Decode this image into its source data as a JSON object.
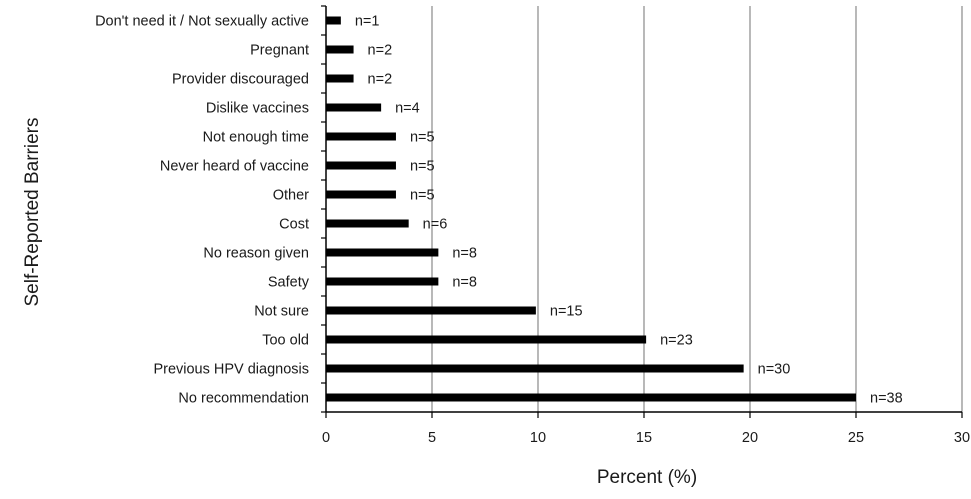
{
  "chart_data": {
    "type": "bar",
    "orientation": "horizontal",
    "xlabel": "Percent (%)",
    "ylabel": "Self-Reported Barriers",
    "xlim": [
      0,
      30
    ],
    "xticks": [
      0,
      5,
      10,
      15,
      20,
      25,
      30
    ],
    "grid": "vertical",
    "bar_color": "#000000",
    "categories": [
      "Don't need it / Not sexually active",
      "Pregnant",
      "Provider discouraged",
      "Dislike vaccines",
      "Not enough time",
      "Never heard of vaccine",
      "Other",
      "Cost",
      "No reason given",
      "Safety",
      "Not sure",
      "Too old",
      "Previous HPV diagnosis",
      "No recommendation"
    ],
    "values": [
      0.7,
      1.3,
      1.3,
      2.6,
      3.3,
      3.3,
      3.3,
      3.9,
      5.3,
      5.3,
      9.9,
      15.1,
      19.7,
      25.0
    ],
    "counts": [
      "n=1",
      "n=2",
      "n=2",
      "n=4",
      "n=5",
      "n=5",
      "n=5",
      "n=6",
      "n=8",
      "n=8",
      "n=15",
      "n=23",
      "n=30",
      "n=38"
    ]
  }
}
